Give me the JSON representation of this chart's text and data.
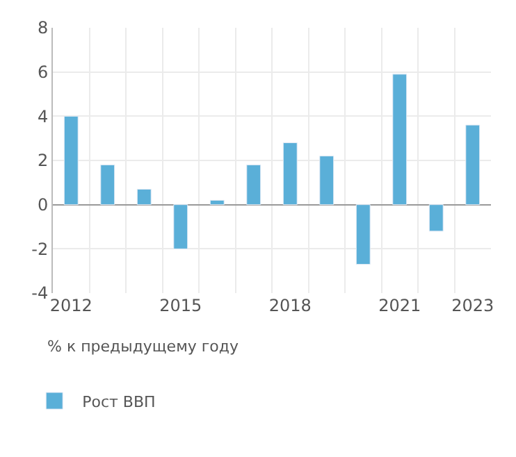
{
  "chart_data": {
    "type": "bar",
    "categories": [
      "2012",
      null,
      null,
      "2015",
      null,
      null,
      "2018",
      null,
      null,
      "2021",
      null,
      "2023"
    ],
    "series": [
      {
        "name": "Рост ВВП",
        "color": "#5aafd8",
        "values": [
          4.0,
          1.8,
          0.7,
          -2.0,
          0.2,
          1.8,
          2.8,
          2.2,
          -2.7,
          5.9,
          -1.2,
          3.6
        ]
      }
    ],
    "ylim": [
      -4,
      8
    ],
    "yticks": [
      -4,
      -2,
      0,
      2,
      4,
      6,
      8
    ],
    "annotations": [
      "% к предыдущему году"
    ],
    "grid": true,
    "legend": "bottom left"
  }
}
